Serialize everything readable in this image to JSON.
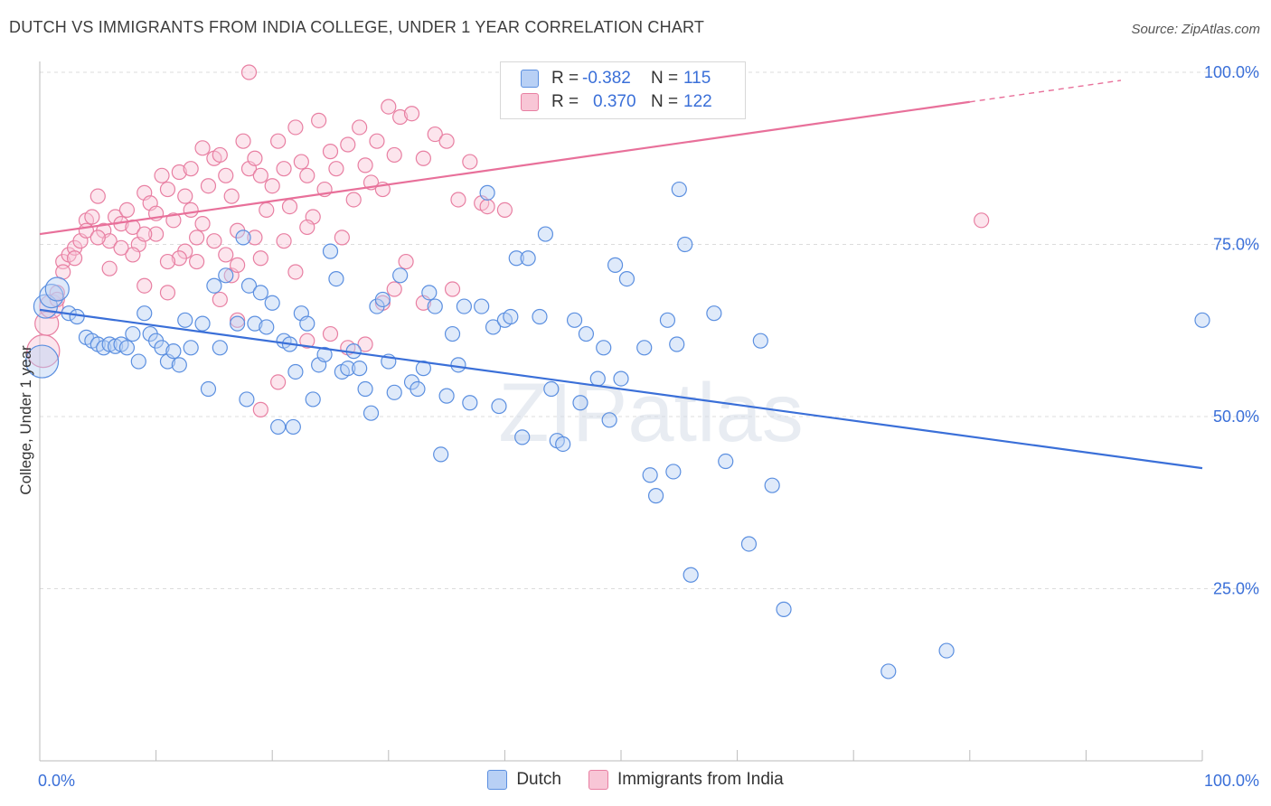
{
  "title": "DUTCH VS IMMIGRANTS FROM INDIA COLLEGE, UNDER 1 YEAR CORRELATION CHART",
  "source": "Source: ZipAtlas.com",
  "watermark": "ZIPatlas",
  "legend": {
    "r_label": "R =",
    "n_label": "N =",
    "rows": [
      {
        "series": "Dutch",
        "r": "-0.382",
        "n": "115",
        "color": "#5b8fe0",
        "fill": "#b8d0f5"
      },
      {
        "series": "Immigrants from India",
        "r": "0.370",
        "n": "122",
        "color": "#e87fa2",
        "fill": "#f8c6d6"
      }
    ]
  },
  "bottom_legend": [
    {
      "label": "Dutch"
    },
    {
      "label": "Immigrants from India"
    }
  ],
  "chart_data": {
    "type": "scatter",
    "title": "DUTCH VS IMMIGRANTS FROM INDIA COLLEGE, UNDER 1 YEAR CORRELATION CHART",
    "xlabel": "",
    "ylabel": "College, Under 1 year",
    "xlim": [
      0,
      100
    ],
    "ylim": [
      0,
      105
    ],
    "x_tick_labels": [
      "0.0%",
      "100.0%"
    ],
    "y_ticks": [
      25,
      50,
      75,
      100
    ],
    "y_tick_labels": [
      "25.0%",
      "50.0%",
      "75.0%",
      "100.0%"
    ],
    "grid": "horizontal dashed",
    "colors": {
      "Dutch": "#3a6fd8",
      "Immigrants from India": "#e8709a",
      "axis_text": "#3a6fd8"
    },
    "series": [
      {
        "name": "Dutch",
        "trend": {
          "x": [
            0,
            100
          ],
          "y": [
            65.5,
            42.5
          ]
        },
        "points": [
          [
            0.2,
            58,
            "L"
          ],
          [
            0.5,
            66,
            "M"
          ],
          [
            1,
            67.5,
            "M"
          ],
          [
            1.5,
            68.5,
            "M"
          ],
          [
            2.5,
            65
          ],
          [
            3.2,
            64.5
          ],
          [
            4,
            61.5
          ],
          [
            4.5,
            61
          ],
          [
            5,
            60.5
          ],
          [
            5.5,
            60
          ],
          [
            6,
            60.5
          ],
          [
            6.5,
            60.2
          ],
          [
            7,
            60.5
          ],
          [
            7.5,
            60
          ],
          [
            8,
            62
          ],
          [
            8.5,
            58
          ],
          [
            9,
            65
          ],
          [
            9.5,
            62
          ],
          [
            10,
            61
          ],
          [
            10.5,
            60
          ],
          [
            11,
            58
          ],
          [
            11.5,
            59.5
          ],
          [
            12,
            57.5
          ],
          [
            12.5,
            64
          ],
          [
            13,
            60
          ],
          [
            14,
            63.5
          ],
          [
            14.5,
            54
          ],
          [
            15,
            69
          ],
          [
            15.5,
            60
          ],
          [
            16,
            70.5
          ],
          [
            17,
            63.5
          ],
          [
            17.5,
            76
          ],
          [
            17.8,
            52.5
          ],
          [
            18,
            69
          ],
          [
            18.5,
            63.5
          ],
          [
            19,
            68
          ],
          [
            19.5,
            63
          ],
          [
            20,
            66.5
          ],
          [
            20.5,
            48.5
          ],
          [
            21,
            61
          ],
          [
            21.5,
            60.5
          ],
          [
            21.8,
            48.5
          ],
          [
            22,
            56.5
          ],
          [
            22.5,
            65
          ],
          [
            23,
            63.5
          ],
          [
            23.5,
            52.5
          ],
          [
            24,
            57.5
          ],
          [
            24.5,
            59
          ],
          [
            25,
            74
          ],
          [
            25.5,
            70
          ],
          [
            26,
            56.5
          ],
          [
            26.5,
            57
          ],
          [
            27,
            59.5
          ],
          [
            27.5,
            57
          ],
          [
            28,
            54
          ],
          [
            28.5,
            50.5
          ],
          [
            29,
            66
          ],
          [
            29.5,
            67
          ],
          [
            30,
            58
          ],
          [
            30.5,
            53.5
          ],
          [
            31,
            70.5
          ],
          [
            32,
            55
          ],
          [
            32.5,
            54
          ],
          [
            33,
            57
          ],
          [
            33.5,
            68
          ],
          [
            34,
            66
          ],
          [
            34.5,
            44.5
          ],
          [
            35,
            53
          ],
          [
            35.5,
            62
          ],
          [
            36,
            57.5
          ],
          [
            36.5,
            66
          ],
          [
            37,
            52
          ],
          [
            38,
            66
          ],
          [
            38.5,
            82.5
          ],
          [
            39,
            63
          ],
          [
            39.5,
            51.5
          ],
          [
            40,
            64
          ],
          [
            40.5,
            64.5
          ],
          [
            41,
            73
          ],
          [
            41.5,
            47
          ],
          [
            42,
            73
          ],
          [
            43,
            64.5
          ],
          [
            43.5,
            76.5
          ],
          [
            44,
            54
          ],
          [
            44.5,
            46.5
          ],
          [
            45,
            46
          ],
          [
            46,
            64
          ],
          [
            46.5,
            52
          ],
          [
            47,
            62
          ],
          [
            48,
            55.5
          ],
          [
            48.5,
            60
          ],
          [
            49,
            49.5
          ],
          [
            49.5,
            72
          ],
          [
            50,
            55.5
          ],
          [
            50.5,
            70
          ],
          [
            52,
            60
          ],
          [
            52.5,
            41.5
          ],
          [
            53,
            38.5
          ],
          [
            54,
            64
          ],
          [
            54.5,
            42
          ],
          [
            54.8,
            60.5
          ],
          [
            55,
            83
          ],
          [
            55.5,
            75
          ],
          [
            56,
            27
          ],
          [
            58,
            65
          ],
          [
            59,
            43.5
          ],
          [
            61,
            31.5
          ],
          [
            62,
            61
          ],
          [
            63,
            40
          ],
          [
            64,
            22
          ],
          [
            73,
            13
          ],
          [
            78,
            16
          ],
          [
            100,
            64
          ]
        ]
      },
      {
        "name": "Immigrants from India",
        "trend": {
          "x": [
            0,
            100
          ],
          "y": [
            76.5,
            100.5
          ],
          "solid_until": 80
        },
        "points": [
          [
            0.3,
            59.5,
            "L"
          ],
          [
            0.6,
            63.5,
            "M"
          ],
          [
            1,
            66,
            "M"
          ],
          [
            1.5,
            68
          ],
          [
            2,
            72.5
          ],
          [
            2.5,
            73.5
          ],
          [
            3,
            74.5
          ],
          [
            3.5,
            75.5
          ],
          [
            4,
            78.5
          ],
          [
            4.5,
            79
          ],
          [
            5,
            82
          ],
          [
            5.5,
            77
          ],
          [
            6,
            75.5
          ],
          [
            6.5,
            79
          ],
          [
            7,
            78
          ],
          [
            7.5,
            80
          ],
          [
            8,
            77.5
          ],
          [
            8.5,
            75
          ],
          [
            9,
            82.5
          ],
          [
            9.5,
            81
          ],
          [
            10,
            79.5
          ],
          [
            10.5,
            85
          ],
          [
            11,
            83
          ],
          [
            11.5,
            78.5
          ],
          [
            12,
            85.5
          ],
          [
            12.5,
            82
          ],
          [
            13,
            86
          ],
          [
            13.5,
            76
          ],
          [
            14,
            89
          ],
          [
            14.5,
            83.5
          ],
          [
            15,
            87.5
          ],
          [
            15.5,
            88
          ],
          [
            16,
            85
          ],
          [
            16.5,
            82
          ],
          [
            17,
            77
          ],
          [
            17.5,
            90
          ],
          [
            18,
            86
          ],
          [
            18.5,
            87.5
          ],
          [
            19,
            85
          ],
          [
            19.5,
            80
          ],
          [
            20,
            83.5
          ],
          [
            20.5,
            90
          ],
          [
            21,
            86
          ],
          [
            21.5,
            80.5
          ],
          [
            22,
            92
          ],
          [
            22.5,
            87
          ],
          [
            23,
            85
          ],
          [
            23.5,
            79
          ],
          [
            24,
            93
          ],
          [
            24.5,
            83
          ],
          [
            25,
            88.5
          ],
          [
            25.5,
            86
          ],
          [
            26,
            76
          ],
          [
            26.5,
            89.5
          ],
          [
            27,
            81.5
          ],
          [
            27.5,
            92
          ],
          [
            28,
            86.5
          ],
          [
            28.5,
            84
          ],
          [
            29,
            90
          ],
          [
            29.5,
            83
          ],
          [
            30,
            95
          ],
          [
            30.5,
            88
          ],
          [
            31,
            93.5
          ],
          [
            32,
            94
          ],
          [
            33,
            87.5
          ],
          [
            34,
            91
          ],
          [
            35,
            90
          ],
          [
            35.5,
            68.5
          ],
          [
            36,
            81.5
          ],
          [
            37,
            87
          ],
          [
            38,
            81
          ],
          [
            38.5,
            80.5
          ],
          [
            40,
            80
          ],
          [
            4,
            77
          ],
          [
            6,
            71.5
          ],
          [
            8,
            73.5
          ],
          [
            9,
            69
          ],
          [
            11,
            68
          ],
          [
            12.5,
            74
          ],
          [
            13.5,
            72.5
          ],
          [
            15.5,
            67
          ],
          [
            16.5,
            70.5
          ],
          [
            17,
            64
          ],
          [
            18.5,
            76
          ],
          [
            19,
            51
          ],
          [
            20.5,
            55
          ],
          [
            22,
            71
          ],
          [
            23,
            61
          ],
          [
            25,
            62
          ],
          [
            26.5,
            60
          ],
          [
            28,
            60.5
          ],
          [
            29.5,
            66.5
          ],
          [
            30.5,
            68.5
          ],
          [
            31.5,
            72.5
          ],
          [
            33,
            66.5
          ],
          [
            18,
            100
          ],
          [
            12,
            73
          ],
          [
            16,
            73.5
          ],
          [
            14,
            78
          ],
          [
            10,
            76.5
          ],
          [
            7,
            74.5
          ],
          [
            5,
            76
          ],
          [
            3,
            73
          ],
          [
            2,
            71
          ],
          [
            1.5,
            67
          ],
          [
            9,
            76.5
          ],
          [
            11,
            72.5
          ],
          [
            13,
            80
          ],
          [
            15,
            75.5
          ],
          [
            17,
            72
          ],
          [
            19,
            73
          ],
          [
            21,
            75.5
          ],
          [
            23,
            77.5
          ],
          [
            81,
            78.5
          ]
        ]
      }
    ]
  }
}
